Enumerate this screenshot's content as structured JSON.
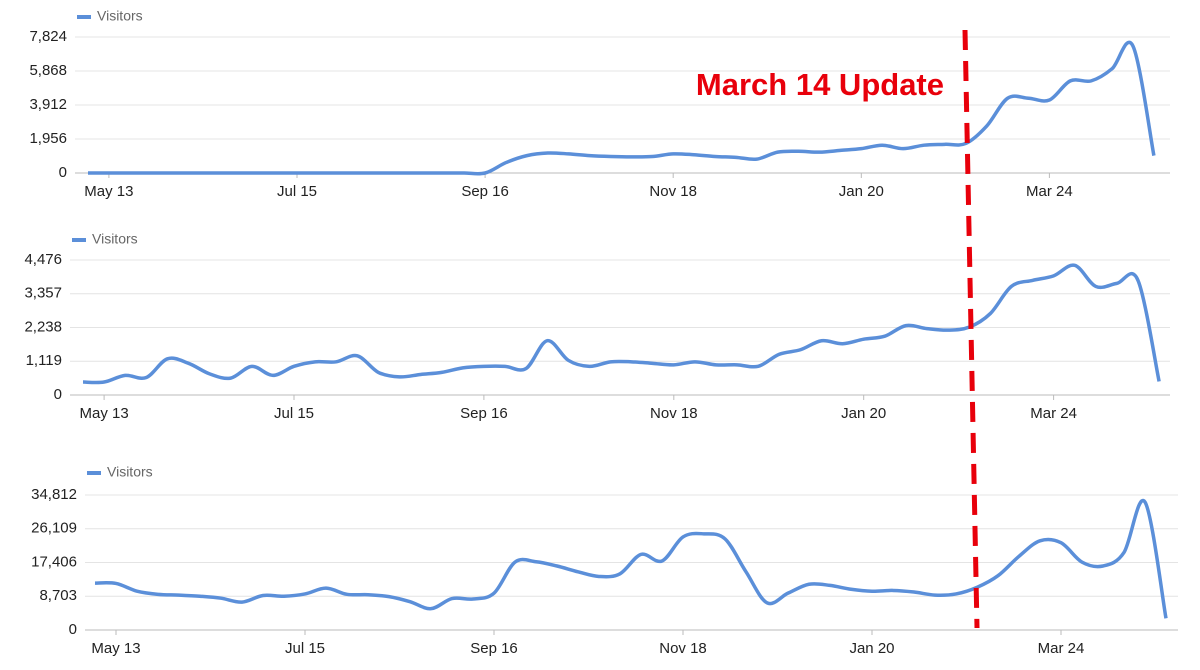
{
  "chart_data": [
    {
      "type": "line",
      "annotation": "March 14 Update",
      "categories": [
        null,
        "May 13",
        null,
        null,
        null,
        null,
        null,
        null,
        null,
        null,
        "Jul 15",
        null,
        null,
        null,
        null,
        null,
        null,
        null,
        null,
        "Sep 16",
        null,
        null,
        null,
        null,
        null,
        null,
        null,
        null,
        "Nov 18",
        null,
        null,
        null,
        null,
        null,
        null,
        null,
        null,
        "Jan 20",
        null,
        null,
        null,
        null,
        null,
        null,
        null,
        null,
        "Mar 24",
        null,
        null,
        null,
        null,
        null
      ],
      "series": [
        {
          "name": "Visitors",
          "color": "#5b8fd9",
          "values": [
            0,
            0,
            0,
            0,
            0,
            0,
            0,
            0,
            0,
            0,
            0,
            0,
            0,
            0,
            0,
            0,
            0,
            0,
            0,
            0,
            600,
            1000,
            1150,
            1100,
            1000,
            950,
            930,
            950,
            1100,
            1050,
            950,
            900,
            800,
            1200,
            1250,
            1200,
            1300,
            1400,
            1600,
            1400,
            1600,
            1650,
            1700,
            2700,
            4300,
            4300,
            4200,
            5300,
            5300,
            6000,
            7300,
            1000
          ]
        }
      ],
      "ylim": [
        0,
        7824
      ],
      "yticks": [
        0,
        {
          "value": 1956,
          "label": "1,956"
        },
        {
          "value": 3912,
          "label": "3,912"
        },
        {
          "value": 5868,
          "label": "5,868"
        },
        {
          "value": 7824,
          "label": "7,824"
        }
      ],
      "grid": true
    },
    {
      "type": "line",
      "categories": [
        null,
        "May 13",
        null,
        null,
        null,
        null,
        null,
        null,
        null,
        null,
        "Jul 15",
        null,
        null,
        null,
        null,
        null,
        null,
        null,
        null,
        "Sep 16",
        null,
        null,
        null,
        null,
        null,
        null,
        null,
        null,
        "Nov 18",
        null,
        null,
        null,
        null,
        null,
        null,
        null,
        null,
        "Jan 20",
        null,
        null,
        null,
        null,
        null,
        null,
        null,
        null,
        "Mar 24",
        null,
        null,
        null,
        null,
        null
      ],
      "series": [
        {
          "name": "Visitors",
          "color": "#5b8fd9",
          "values": [
            430,
            430,
            650,
            580,
            1200,
            1050,
            700,
            560,
            950,
            650,
            950,
            1100,
            1100,
            1300,
            750,
            600,
            680,
            750,
            900,
            950,
            950,
            880,
            1800,
            1150,
            950,
            1100,
            1100,
            1050,
            1000,
            1100,
            1000,
            1000,
            950,
            1350,
            1500,
            1800,
            1700,
            1850,
            1950,
            2300,
            2200,
            2150,
            2250,
            2700,
            3600,
            3800,
            3950,
            4300,
            3600,
            3700,
            3800,
            450
          ]
        }
      ],
      "ylim": [
        0,
        4476
      ],
      "yticks": [
        0,
        {
          "value": 1119,
          "label": "1,119"
        },
        {
          "value": 2238,
          "label": "2,238"
        },
        {
          "value": 3357,
          "label": "3,357"
        },
        {
          "value": 4476,
          "label": "4,476"
        }
      ],
      "grid": true
    },
    {
      "type": "line",
      "categories": [
        null,
        "May 13",
        null,
        null,
        null,
        null,
        null,
        null,
        null,
        null,
        "Jul 15",
        null,
        null,
        null,
        null,
        null,
        null,
        null,
        null,
        "Sep 16",
        null,
        null,
        null,
        null,
        null,
        null,
        null,
        null,
        "Nov 18",
        null,
        null,
        null,
        null,
        null,
        null,
        null,
        null,
        "Jan 20",
        null,
        null,
        null,
        null,
        null,
        null,
        null,
        null,
        "Mar 24",
        null,
        null,
        null,
        null,
        null
      ],
      "series": [
        {
          "name": "Visitors",
          "color": "#5b8fd9",
          "values": [
            12100,
            12000,
            10000,
            9200,
            9000,
            8700,
            8200,
            7200,
            8900,
            8700,
            9300,
            10800,
            9200,
            9100,
            8600,
            7300,
            5500,
            8100,
            8000,
            9500,
            17500,
            17600,
            16500,
            15000,
            13800,
            14500,
            19500,
            17800,
            24000,
            24800,
            23500,
            15000,
            7000,
            9500,
            11800,
            11500,
            10500,
            10000,
            10200,
            9800,
            9000,
            9300,
            11000,
            14000,
            19000,
            23000,
            22500,
            17500,
            16500,
            20000,
            33000,
            3000
          ]
        }
      ],
      "ylim": [
        0,
        34812
      ],
      "yticks": [
        0,
        {
          "value": 8703,
          "label": "8,703"
        },
        {
          "value": 17406,
          "label": "17,406"
        },
        {
          "value": 26109,
          "label": "26,109"
        },
        {
          "value": 34812,
          "label": "34,812"
        }
      ],
      "grid": true
    }
  ]
}
